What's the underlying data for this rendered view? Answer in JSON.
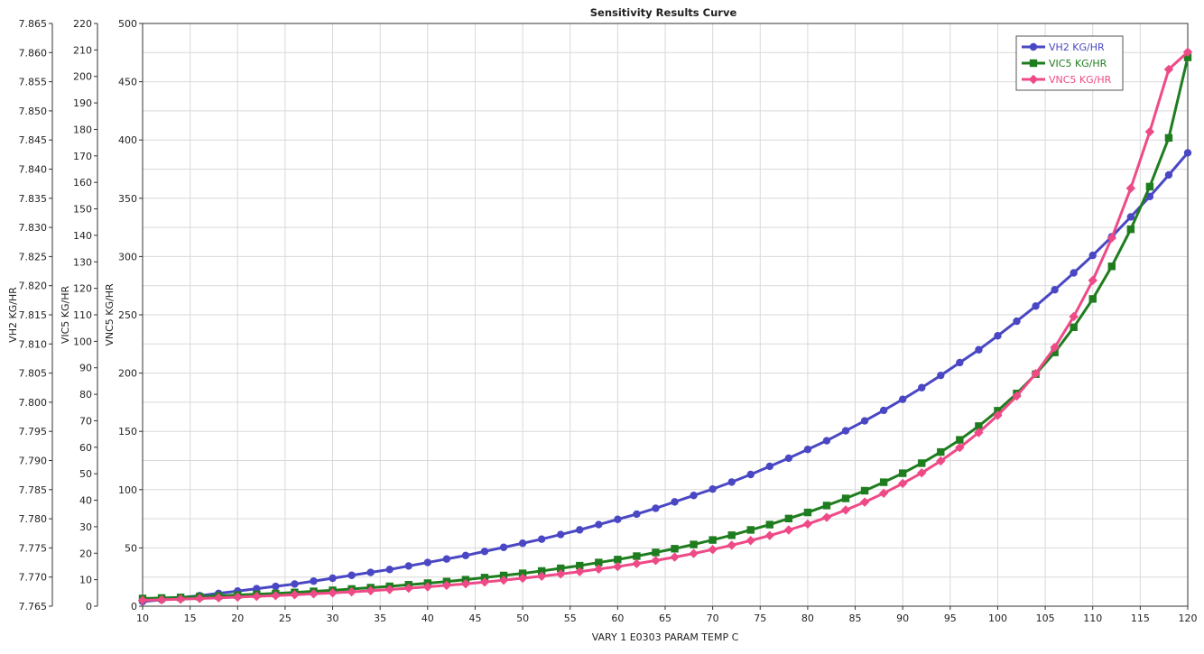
{
  "chart_data": {
    "type": "line",
    "title": "Sensitivity Results Curve",
    "xlabel": "VARY   1 E0303 PARAM TEMP C",
    "xlim": [
      10,
      120
    ],
    "x_ticks": [
      10,
      15,
      20,
      25,
      30,
      35,
      40,
      45,
      50,
      55,
      60,
      65,
      70,
      75,
      80,
      85,
      90,
      95,
      100,
      105,
      110,
      115,
      120
    ],
    "grid": true,
    "legend_position": "top-right",
    "y_axes": [
      {
        "label": "VH2 KG/HR",
        "range": [
          7.765,
          7.865
        ],
        "ticks": [
          "7.765",
          "7.770",
          "7.775",
          "7.780",
          "7.785",
          "7.790",
          "7.795",
          "7.800",
          "7.805",
          "7.810",
          "7.815",
          "7.820",
          "7.825",
          "7.830",
          "7.835",
          "7.840",
          "7.845",
          "7.850",
          "7.855",
          "7.860",
          "7.865"
        ]
      },
      {
        "label": "VIC5 KG/HR",
        "range": [
          0,
          220
        ],
        "ticks": [
          "0",
          "10",
          "20",
          "30",
          "40",
          "50",
          "60",
          "70",
          "80",
          "90",
          "100",
          "110",
          "120",
          "130",
          "140",
          "150",
          "160",
          "170",
          "180",
          "190",
          "200",
          "210",
          "220"
        ]
      },
      {
        "label": "VNC5 KG/HR",
        "range": [
          0,
          500
        ],
        "ticks": [
          "0",
          "50",
          "100",
          "150",
          "200",
          "250",
          "300",
          "350",
          "400",
          "450",
          "500"
        ]
      }
    ],
    "x": [
      10,
      12,
      14,
      16,
      18,
      20,
      22,
      24,
      26,
      28,
      30,
      32,
      34,
      36,
      38,
      40,
      42,
      44,
      46,
      48,
      50,
      52,
      54,
      56,
      58,
      60,
      62,
      64,
      66,
      68,
      70,
      72,
      74,
      76,
      78,
      80,
      82,
      84,
      86,
      88,
      90,
      92,
      94,
      96,
      98,
      100,
      102,
      104,
      106,
      108,
      110,
      112,
      114,
      116,
      118,
      120
    ],
    "series": [
      {
        "name": "VH2 KG/HR",
        "axis": 0,
        "color": "#4a47c4",
        "marker": "circle",
        "values": [
          7.7658,
          7.7661,
          7.7665,
          7.7668,
          7.7672,
          7.7676,
          7.768,
          7.7684,
          7.7688,
          7.7693,
          7.7698,
          7.7703,
          7.7708,
          7.7713,
          7.7719,
          7.7725,
          7.7731,
          7.7737,
          7.7744,
          7.7751,
          7.7758,
          7.7765,
          7.7773,
          7.7781,
          7.779,
          7.7799,
          7.7808,
          7.7818,
          7.7829,
          7.784,
          7.7851,
          7.7863,
          7.7876,
          7.789,
          7.7904,
          7.7919,
          7.7934,
          7.7951,
          7.7968,
          7.7986,
          7.8005,
          7.8025,
          7.8046,
          7.8068,
          7.809,
          7.8114,
          7.8139,
          7.8165,
          7.8193,
          7.8222,
          7.8252,
          7.8284,
          7.8318,
          7.8353,
          7.839,
          7.8428
        ]
      },
      {
        "name": "VIC5 KG/HR",
        "axis": 1,
        "color": "#1e7d1e",
        "marker": "square",
        "values": [
          2.9,
          3.1,
          3.3,
          3.6,
          3.9,
          4.2,
          4.5,
          4.8,
          5.2,
          5.6,
          6.0,
          6.5,
          7.0,
          7.5,
          8.1,
          8.7,
          9.3,
          10.0,
          10.8,
          11.6,
          12.4,
          13.3,
          14.3,
          15.3,
          16.5,
          17.6,
          18.9,
          20.3,
          21.7,
          23.3,
          25.0,
          26.8,
          28.8,
          30.8,
          33.1,
          35.4,
          38.0,
          40.7,
          43.6,
          46.8,
          50.2,
          54.0,
          58.2,
          62.8,
          68.0,
          73.8,
          80.3,
          87.6,
          95.8,
          105.3,
          116.0,
          128.3,
          142.3,
          158.4,
          176.8,
          207.2
        ]
      },
      {
        "name": "VNC5 KG/HR",
        "axis": 2,
        "color": "#ee4a87",
        "marker": "diamond",
        "values": [
          5.0,
          5.5,
          6.0,
          6.6,
          7.2,
          7.8,
          8.4,
          9.1,
          9.8,
          10.6,
          11.4,
          12.3,
          13.3,
          14.3,
          15.4,
          16.6,
          17.9,
          19.2,
          20.7,
          22.3,
          24.0,
          25.7,
          27.6,
          29.6,
          31.8,
          34.0,
          36.5,
          39.2,
          42.1,
          45.2,
          48.6,
          52.3,
          56.3,
          60.6,
          65.4,
          70.5,
          76.2,
          82.5,
          89.3,
          96.9,
          105.3,
          114.4,
          124.6,
          136.1,
          149.0,
          163.8,
          180.3,
          199.6,
          222.1,
          248.5,
          279.5,
          315.9,
          358.6,
          407.1,
          460.6,
          475.5
        ]
      }
    ]
  }
}
